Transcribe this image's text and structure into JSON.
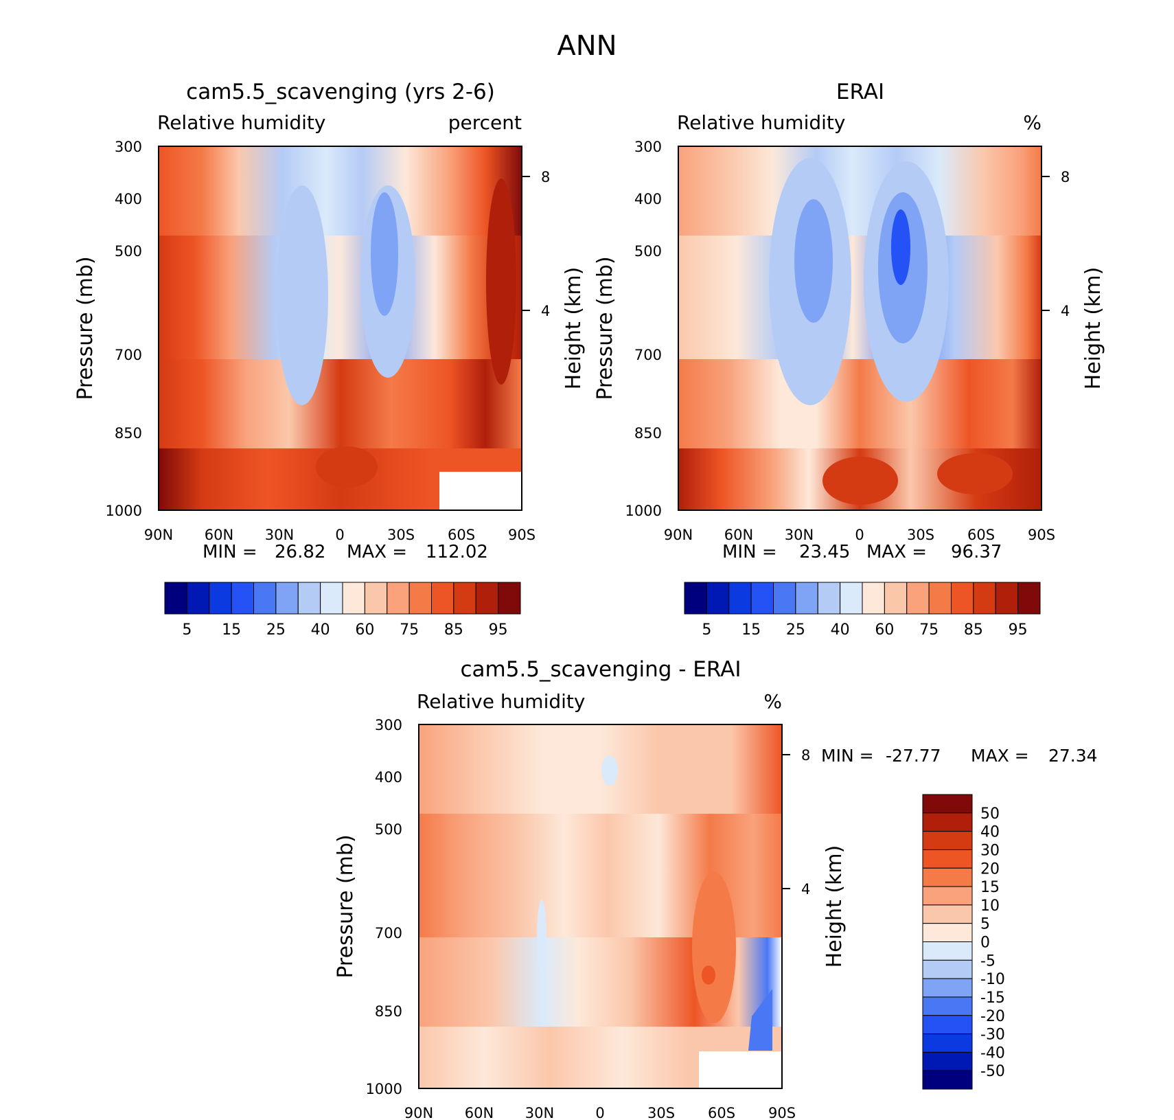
{
  "figure": {
    "title": "ANN"
  },
  "chart_data": [
    {
      "type": "heatmap",
      "title": "cam5.5_scavenging (yrs 2-6)",
      "variable": "Relative humidity",
      "units": "percent",
      "xlabel": "",
      "ylabel": "Pressure (mb)",
      "y2label": "Height (km)",
      "x_ticks": [
        "90N",
        "60N",
        "30N",
        "0",
        "30S",
        "60S",
        "90S"
      ],
      "y_ticks": [
        300,
        400,
        500,
        700,
        850,
        1000
      ],
      "y2_ticks": [
        "8",
        "4"
      ],
      "ylim": [
        1000,
        300
      ],
      "min_label": "MIN =",
      "min_value": "26.82",
      "max_label": "MAX =",
      "max_value": "112.02",
      "colorbar": {
        "orientation": "horizontal",
        "labels": [
          "5",
          "15",
          "25",
          "40",
          "60",
          "75",
          "85",
          "95"
        ],
        "colors": [
          "#00007f",
          "#0018b4",
          "#0a3ae0",
          "#2452f5",
          "#4a78f5",
          "#7fa3f5",
          "#b4cbf6",
          "#daeafa",
          "#fde8d9",
          "#fbc7ab",
          "#f9a27c",
          "#f47a48",
          "#ee5525",
          "#d53b13",
          "#b01f0a",
          "#800a0a"
        ]
      },
      "latitude_profile": {
        "lat": [
          -90,
          -75,
          -60,
          -45,
          -30,
          -15,
          0,
          15,
          30,
          45,
          60,
          75,
          90
        ],
        "rh_300mb": [
          85,
          82,
          75,
          62,
          50,
          40,
          55,
          40,
          52,
          62,
          75,
          88,
          100
        ],
        "rh_500mb": [
          85,
          82,
          72,
          55,
          35,
          32,
          58,
          30,
          38,
          60,
          80,
          92,
          105
        ],
        "rh_700mb": [
          85,
          80,
          70,
          50,
          38,
          35,
          62,
          36,
          40,
          62,
          82,
          85,
          85
        ],
        "rh_1000mb": [
          95,
          90,
          85,
          80,
          75,
          78,
          88,
          85,
          80,
          82,
          88,
          85,
          85
        ]
      }
    },
    {
      "type": "heatmap",
      "title": "ERAI",
      "variable": "Relative humidity",
      "units": "%",
      "xlabel": "",
      "ylabel": "Pressure (mb)",
      "y2label": "Height (km)",
      "x_ticks": [
        "90N",
        "60N",
        "30N",
        "0",
        "30S",
        "60S",
        "90S"
      ],
      "y_ticks": [
        300,
        400,
        500,
        700,
        850,
        1000
      ],
      "y2_ticks": [
        "8",
        "4"
      ],
      "ylim": [
        1000,
        300
      ],
      "min_label": "MIN =",
      "min_value": "23.45",
      "max_label": "MAX =",
      "max_value": "96.37",
      "colorbar": {
        "orientation": "horizontal",
        "labels": [
          "5",
          "15",
          "25",
          "40",
          "60",
          "75",
          "85",
          "95"
        ],
        "colors": [
          "#00007f",
          "#0018b4",
          "#0a3ae0",
          "#2452f5",
          "#4a78f5",
          "#7fa3f5",
          "#b4cbf6",
          "#daeafa",
          "#fde8d9",
          "#fbc7ab",
          "#f9a27c",
          "#f47a48",
          "#ee5525",
          "#d53b13",
          "#b01f0a",
          "#800a0a"
        ]
      },
      "latitude_profile": {
        "lat": [
          -90,
          -75,
          -60,
          -45,
          -30,
          -15,
          0,
          15,
          30,
          45,
          60,
          75,
          90
        ],
        "rh_300mb": [
          75,
          70,
          62,
          50,
          40,
          40,
          55,
          40,
          42,
          55,
          68,
          78,
          80
        ],
        "rh_500mb": [
          70,
          65,
          58,
          45,
          30,
          30,
          58,
          25,
          30,
          50,
          70,
          78,
          82
        ],
        "rh_700mb": [
          72,
          68,
          62,
          48,
          35,
          38,
          62,
          35,
          38,
          58,
          75,
          82,
          88
        ],
        "rh_1000mb": [
          90,
          85,
          80,
          78,
          72,
          85,
          88,
          82,
          75,
          80,
          88,
          92,
          95
        ]
      }
    },
    {
      "type": "heatmap",
      "title": "cam5.5_scavenging - ERAI",
      "variable": "Relative humidity",
      "units": "%",
      "xlabel": "",
      "ylabel": "Pressure (mb)",
      "y2label": "Height (km)",
      "x_ticks": [
        "90N",
        "60N",
        "30N",
        "0",
        "30S",
        "60S",
        "90S"
      ],
      "y_ticks": [
        300,
        400,
        500,
        700,
        850,
        1000
      ],
      "y2_ticks": [
        "8",
        "4"
      ],
      "ylim": [
        1000,
        300
      ],
      "min_label": "MIN =",
      "min_value": "-27.77",
      "max_label": "MAX =",
      "max_value": "27.34",
      "colorbar": {
        "orientation": "vertical",
        "labels": [
          "50",
          "40",
          "30",
          "20",
          "15",
          "10",
          "5",
          "0",
          "-5",
          "-10",
          "-15",
          "-20",
          "-30",
          "-40",
          "-50"
        ],
        "colors": [
          "#800a0a",
          "#b01f0a",
          "#d53b13",
          "#ee5525",
          "#f47a48",
          "#f9a27c",
          "#fbc7ab",
          "#fde8d9",
          "#daeafa",
          "#b4cbf6",
          "#7fa3f5",
          "#4a78f5",
          "#2452f5",
          "#0a3ae0",
          "#0018b4",
          "#00007f"
        ]
      },
      "latitude_profile": {
        "lat": [
          -90,
          -75,
          -60,
          -45,
          -30,
          -15,
          0,
          15,
          30,
          45,
          60,
          75,
          90
        ],
        "diff_300mb": [
          8,
          10,
          10,
          8,
          5,
          3,
          1,
          2,
          8,
          10,
          8,
          12,
          22
        ],
        "diff_500mb": [
          14,
          12,
          10,
          8,
          5,
          3,
          1,
          3,
          8,
          10,
          12,
          15,
          20
        ],
        "diff_700mb": [
          12,
          10,
          9,
          8,
          5,
          -2,
          1,
          3,
          8,
          12,
          18,
          10,
          -10
        ],
        "diff_1000mb": [
          8,
          6,
          4,
          5,
          3,
          2,
          3,
          5,
          6,
          8,
          10,
          5,
          -20
        ]
      }
    }
  ]
}
